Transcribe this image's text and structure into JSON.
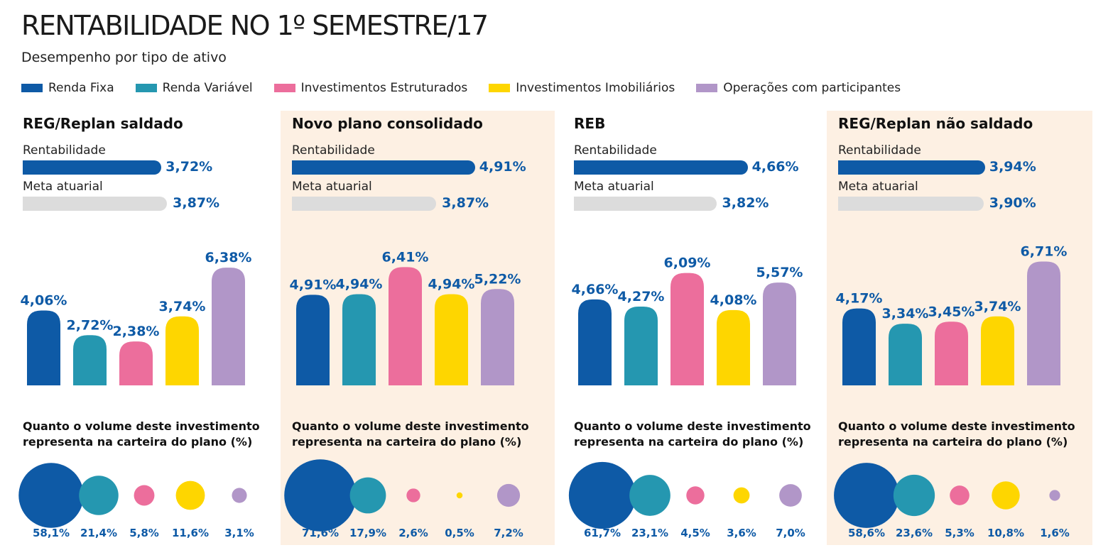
{
  "title": "RENTABILIDADE NO 1º SEMESTRE/17",
  "subtitle": "Desempenho por tipo de ativo",
  "legend": [
    {
      "label": "Renda Fixa",
      "color": "#0e5aa6"
    },
    {
      "label": "Renda Variável",
      "color": "#2597b0"
    },
    {
      "label": "Investimentos Estruturados",
      "color": "#ec6e9c"
    },
    {
      "label": "Investimentos Imobiliários",
      "color": "#fed600"
    },
    {
      "label": "Operações com participantes",
      "color": "#b196c8"
    }
  ],
  "labels": {
    "rentabilidade": "Rentabilidade",
    "meta": "Meta atuarial",
    "volume_line1": "Quanto o volume deste investimento",
    "volume_line2": "representa na carteira do plano (%)"
  },
  "meta_bar_color": "#dcdcdc",
  "chart_data": [
    {
      "type": "bar",
      "title": "REG/Replan saldado",
      "shaded": false,
      "rentabilidade": {
        "value": 3.72,
        "label": "3,72%"
      },
      "meta_atuarial": {
        "value": 3.87,
        "label": "3,87%"
      },
      "categories": [
        "Renda Fixa",
        "Renda Variável",
        "Investimentos Estruturados",
        "Investimentos Imobiliários",
        "Operações com participantes"
      ],
      "values": [
        4.06,
        2.72,
        2.38,
        3.74,
        6.38
      ],
      "value_labels": [
        "4,06%",
        "2,72%",
        "2,38%",
        "3,74%",
        "6,38%"
      ],
      "volume": [
        58.1,
        21.4,
        5.8,
        11.6,
        3.1
      ],
      "volume_labels": [
        "58,1%",
        "21,4%",
        "5,8%",
        "11,6%",
        "3,1%"
      ]
    },
    {
      "type": "bar",
      "title": "Novo plano consolidado",
      "shaded": true,
      "rentabilidade": {
        "value": 4.91,
        "label": "4,91%"
      },
      "meta_atuarial": {
        "value": 3.87,
        "label": "3,87%"
      },
      "categories": [
        "Renda Fixa",
        "Renda Variável",
        "Investimentos Estruturados",
        "Investimentos Imobiliários",
        "Operações com participantes"
      ],
      "values": [
        4.91,
        4.94,
        6.41,
        4.94,
        5.22
      ],
      "value_labels": [
        "4,91%",
        "4,94%",
        "6,41%",
        "4,94%",
        "5,22%"
      ],
      "volume": [
        71.6,
        17.9,
        2.6,
        0.5,
        7.2
      ],
      "volume_labels": [
        "71,6%",
        "17,9%",
        "2,6%",
        "0,5%",
        "7,2%"
      ]
    },
    {
      "type": "bar",
      "title": "REB",
      "shaded": false,
      "rentabilidade": {
        "value": 4.66,
        "label": "4,66%"
      },
      "meta_atuarial": {
        "value": 3.82,
        "label": "3,82%"
      },
      "categories": [
        "Renda Fixa",
        "Renda Variável",
        "Investimentos Estruturados",
        "Investimentos Imobiliários",
        "Operações com participantes"
      ],
      "values": [
        4.66,
        4.27,
        6.09,
        4.08,
        5.57
      ],
      "value_labels": [
        "4,66%",
        "4,27%",
        "6,09%",
        "4,08%",
        "5,57%"
      ],
      "volume": [
        61.7,
        23.1,
        4.5,
        3.6,
        7.0
      ],
      "volume_labels": [
        "61,7%",
        "23,1%",
        "4,5%",
        "3,6%",
        "7,0%"
      ]
    },
    {
      "type": "bar",
      "title": "REG/Replan não saldado",
      "shaded": true,
      "rentabilidade": {
        "value": 3.94,
        "label": "3,94%"
      },
      "meta_atuarial": {
        "value": 3.9,
        "label": "3,90%"
      },
      "categories": [
        "Renda Fixa",
        "Renda Variável",
        "Investimentos Estruturados",
        "Investimentos Imobiliários",
        "Operações com participantes"
      ],
      "values": [
        4.17,
        3.34,
        3.45,
        3.74,
        6.71
      ],
      "value_labels": [
        "4,17%",
        "3,34%",
        "3,45%",
        "3,74%",
        "6,71%"
      ],
      "volume": [
        58.6,
        23.6,
        5.3,
        10.8,
        1.6
      ],
      "volume_labels": [
        "58,6%",
        "23,6%",
        "5,3%",
        "10,8%",
        "1,6%"
      ]
    }
  ]
}
